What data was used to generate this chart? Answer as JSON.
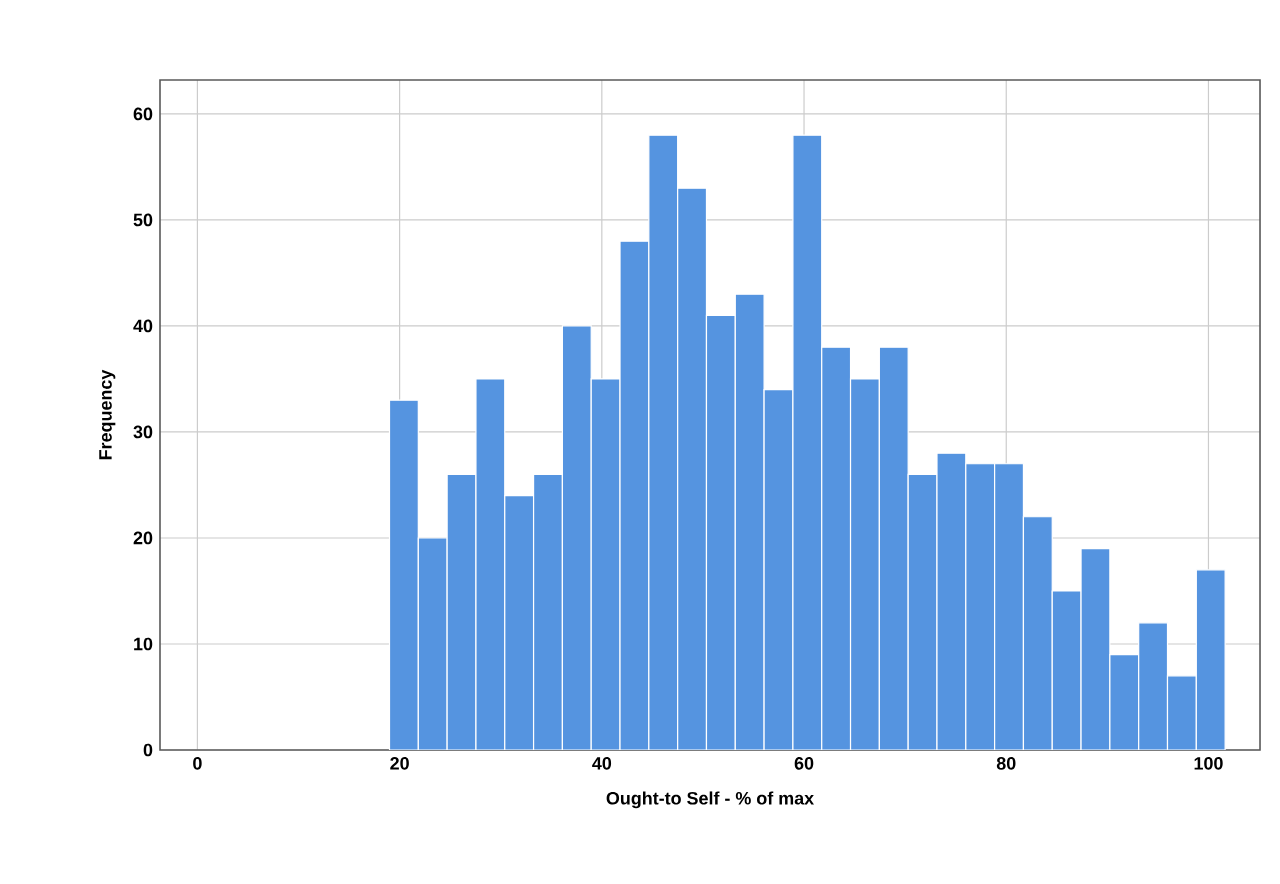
{
  "chart_data": {
    "type": "histogram",
    "xlabel": "Ought-to Self - % of max",
    "ylabel": "Frequency",
    "bins": [
      19,
      21.85,
      24.7,
      27.55,
      30.4,
      33.25,
      36.1,
      38.95,
      41.8,
      44.65,
      47.5,
      50.35,
      53.2,
      56.05,
      58.9,
      61.75,
      64.6,
      67.45,
      70.3,
      73.15,
      76,
      78.85,
      81.7,
      84.55,
      87.4,
      90.25,
      93.1,
      95.95,
      98.8,
      101.65
    ],
    "values": [
      33,
      20,
      26,
      35,
      24,
      26,
      40,
      35,
      48,
      58,
      53,
      41,
      43,
      34,
      58,
      38,
      35,
      38,
      26,
      28,
      27,
      27,
      22,
      15,
      19,
      9,
      12,
      7,
      17
    ],
    "color": "#5594e0",
    "xlim": [
      -3.7,
      105.1
    ],
    "ylim": [
      0,
      63.2
    ],
    "xticks": [
      0,
      20,
      40,
      60,
      80,
      100
    ],
    "yticks": [
      0,
      10,
      20,
      30,
      40,
      50,
      60
    ],
    "grid": true
  }
}
